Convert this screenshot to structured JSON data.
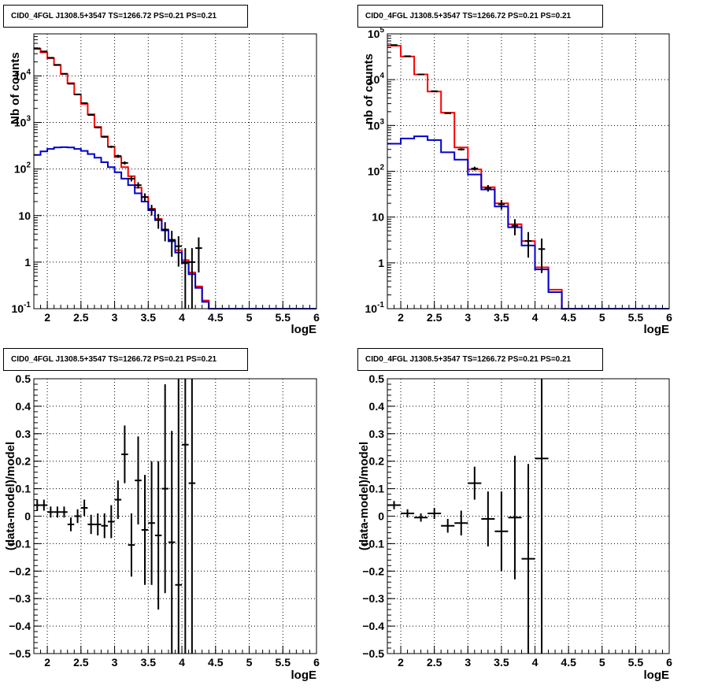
{
  "colors": {
    "data": "#000000",
    "model": "#ff0000",
    "component": "#0000cc",
    "grid": "#000000"
  },
  "chart_data": [
    {
      "type": "line",
      "title": "CID0_4FGL J1308.5+3547 TS=1266.72 PS=0.21 PS=0.21",
      "xlabel": "logE",
      "ylabel": "Nb of counts",
      "xlim": [
        1.8,
        6.0
      ],
      "ylim": [
        0.1,
        80000
      ],
      "log_y": true,
      "grid": true,
      "x_ticks": [
        "2",
        "2.5",
        "3",
        "3.5",
        "4",
        "4.5",
        "5",
        "5.5",
        "6"
      ],
      "y_ticks": [
        "10^-1",
        "1",
        "10",
        "10^2",
        "10^3",
        "10^4"
      ],
      "bin_edges": [
        1.8,
        1.9,
        2.0,
        2.1,
        2.2,
        2.3,
        2.4,
        2.5,
        2.6,
        2.7,
        2.8,
        2.9,
        3.0,
        3.1,
        3.2,
        3.3,
        3.4,
        3.5,
        3.6,
        3.7,
        3.8,
        3.9,
        4.0,
        4.1,
        4.2,
        4.3,
        4.4,
        4.5,
        4.6,
        4.7,
        4.8,
        4.9,
        5.0,
        5.1,
        5.2,
        5.3,
        5.4,
        5.5,
        5.6,
        5.7,
        5.8,
        5.9,
        6.0
      ],
      "series": [
        {
          "kind": "step",
          "color": "#ff0000",
          "values": [
            38000,
            32000,
            24000,
            17000,
            11000,
            7000,
            4000,
            2500,
            1500,
            800,
            500,
            300,
            180,
            110,
            70,
            40,
            25,
            14,
            8.5,
            5,
            3,
            1.8,
            1.1,
            0.6,
            0.3,
            0.15,
            0.1,
            0.1,
            0.1,
            0.1,
            0.1,
            0.1,
            0.1,
            0.1,
            0.1,
            0.1,
            0.1,
            0.1,
            0.1,
            0.1,
            0.1,
            0.1
          ]
        },
        {
          "kind": "step",
          "color": "#0000cc",
          "values": [
            200,
            240,
            270,
            290,
            295,
            290,
            270,
            245,
            210,
            175,
            140,
            110,
            85,
            62,
            45,
            30,
            20,
            13,
            8,
            4.8,
            2.8,
            1.6,
            0.95,
            0.55,
            0.28,
            0.14,
            0.1,
            0.1,
            0.1,
            0.1,
            0.1,
            0.1,
            0.1,
            0.1,
            0.1,
            0.1,
            0.1,
            0.1,
            0.1,
            0.1,
            0.1,
            0.1
          ]
        },
        {
          "kind": "points",
          "color": "#000000",
          "points": [
            {
              "x": 1.85,
              "y": 39000,
              "lo": 38500,
              "hi": 39500
            },
            {
              "x": 1.95,
              "y": 33500,
              "lo": 33000,
              "hi": 34000
            },
            {
              "x": 2.05,
              "y": 24500,
              "lo": 24100,
              "hi": 24900
            },
            {
              "x": 2.15,
              "y": 17300,
              "lo": 17000,
              "hi": 17600
            },
            {
              "x": 2.25,
              "y": 11100,
              "lo": 10900,
              "hi": 11300
            },
            {
              "x": 2.35,
              "y": 6800,
              "lo": 6650,
              "hi": 6950
            },
            {
              "x": 2.45,
              "y": 4000,
              "lo": 3900,
              "hi": 4100
            },
            {
              "x": 2.55,
              "y": 2600,
              "lo": 2500,
              "hi": 2700
            },
            {
              "x": 2.65,
              "y": 1450,
              "lo": 1400,
              "hi": 1500
            },
            {
              "x": 2.75,
              "y": 780,
              "lo": 750,
              "hi": 810
            },
            {
              "x": 2.85,
              "y": 490,
              "lo": 470,
              "hi": 510
            },
            {
              "x": 2.95,
              "y": 300,
              "lo": 283,
              "hi": 317
            },
            {
              "x": 3.05,
              "y": 190,
              "lo": 177,
              "hi": 203
            },
            {
              "x": 3.15,
              "y": 135,
              "lo": 124,
              "hi": 146
            },
            {
              "x": 3.25,
              "y": 62,
              "lo": 54,
              "hi": 70
            },
            {
              "x": 3.35,
              "y": 45,
              "lo": 38,
              "hi": 52
            },
            {
              "x": 3.45,
              "y": 25,
              "lo": 20,
              "hi": 30
            },
            {
              "x": 3.55,
              "y": 13.5,
              "lo": 10,
              "hi": 17
            },
            {
              "x": 3.65,
              "y": 8,
              "lo": 5.2,
              "hi": 10.8
            },
            {
              "x": 3.75,
              "y": 5,
              "lo": 2.8,
              "hi": 7.2
            },
            {
              "x": 3.85,
              "y": 3,
              "lo": 1.3,
              "hi": 4.7
            },
            {
              "x": 3.95,
              "y": 2.2,
              "lo": 0.8,
              "hi": 3.6
            },
            {
              "x": 4.05,
              "y": 1,
              "lo": 0.1,
              "hi": 2.0
            },
            {
              "x": 4.15,
              "y": 1,
              "lo": 0.1,
              "hi": 2.0
            },
            {
              "x": 4.25,
              "y": 2,
              "lo": 0.6,
              "hi": 3.4
            }
          ]
        }
      ]
    },
    {
      "type": "line",
      "title": "CID0_4FGL J1308.5+3547 TS=1266.72 PS=0.21 PS=0.21",
      "xlabel": "logE",
      "ylabel": "nb of counts",
      "xlim": [
        1.8,
        6.0
      ],
      "ylim": [
        0.1,
        100000
      ],
      "log_y": true,
      "grid": true,
      "x_ticks": [
        "2",
        "2.5",
        "3",
        "3.5",
        "4",
        "4.5",
        "5",
        "5.5",
        "6"
      ],
      "y_ticks": [
        "10^-1",
        "1",
        "10",
        "10^2",
        "10^3",
        "10^4",
        "10^5"
      ],
      "bin_edges": [
        1.8,
        2.0,
        2.2,
        2.4,
        2.6,
        2.8,
        3.0,
        3.2,
        3.4,
        3.6,
        3.8,
        4.0,
        4.2,
        4.4,
        4.6,
        4.8,
        5.0,
        5.2,
        5.4,
        5.6,
        5.8,
        6.0
      ],
      "series": [
        {
          "kind": "step",
          "color": "#ff0000",
          "values": [
            55000,
            32000,
            13000,
            5500,
            1900,
            330,
            110,
            45,
            20,
            7,
            3,
            0.8,
            0.26,
            0.1,
            0.1,
            0.1,
            0.1,
            0.1,
            0.1,
            0.1,
            0.1
          ]
        },
        {
          "kind": "step",
          "color": "#0000cc",
          "values": [
            400,
            520,
            580,
            480,
            260,
            180,
            85,
            40,
            17,
            6,
            2.4,
            0.72,
            0.23,
            0.1,
            0.1,
            0.1,
            0.1,
            0.1,
            0.1,
            0.1,
            0.1
          ]
        },
        {
          "kind": "points",
          "color": "#000000",
          "points": [
            {
              "x": 1.9,
              "y": 57000,
              "lo": 56500,
              "hi": 57500
            },
            {
              "x": 2.1,
              "y": 32500,
              "lo": 32100,
              "hi": 32900
            },
            {
              "x": 2.3,
              "y": 13000,
              "lo": 12800,
              "hi": 13200
            },
            {
              "x": 2.5,
              "y": 5600,
              "lo": 5500,
              "hi": 5700
            },
            {
              "x": 2.7,
              "y": 1850,
              "lo": 1800,
              "hi": 1900
            },
            {
              "x": 2.9,
              "y": 300,
              "lo": 283,
              "hi": 317
            },
            {
              "x": 3.1,
              "y": 115,
              "lo": 104,
              "hi": 126
            },
            {
              "x": 3.3,
              "y": 43,
              "lo": 36,
              "hi": 50
            },
            {
              "x": 3.5,
              "y": 19,
              "lo": 14.5,
              "hi": 23.5
            },
            {
              "x": 3.7,
              "y": 6.5,
              "lo": 4,
              "hi": 9
            },
            {
              "x": 3.9,
              "y": 3,
              "lo": 1.3,
              "hi": 4.7
            },
            {
              "x": 4.1,
              "y": 2,
              "lo": 0.6,
              "hi": 3.4
            }
          ]
        }
      ]
    },
    {
      "type": "scatter",
      "title": "CID0_4FGL J1308.5+3547 TS=1266.72 PS=0.21 PS=0.21",
      "xlabel": "logE",
      "ylabel": "(data-model)/model",
      "xlim": [
        1.8,
        6.0
      ],
      "ylim": [
        -0.5,
        0.5
      ],
      "grid": true,
      "x_ticks": [
        "2",
        "2.5",
        "3",
        "3.5",
        "4",
        "4.5",
        "5",
        "5.5",
        "6"
      ],
      "y_ticks": [
        "−0.5",
        "−0.4",
        "−0.3",
        "−0.2",
        "−0.1",
        "0",
        "0.1",
        "0.2",
        "0.3",
        "0.4",
        "0.5"
      ],
      "series": [
        {
          "kind": "points",
          "color": "#000000",
          "xerr": 0.05,
          "points": [
            {
              "x": 1.85,
              "y": 0.04,
              "lo": 0.02,
              "hi": 0.06
            },
            {
              "x": 1.95,
              "y": 0.04,
              "lo": 0.02,
              "hi": 0.06
            },
            {
              "x": 2.05,
              "y": 0.015,
              "lo": -0.005,
              "hi": 0.035
            },
            {
              "x": 2.15,
              "y": 0.015,
              "lo": -0.005,
              "hi": 0.035
            },
            {
              "x": 2.25,
              "y": 0.015,
              "lo": -0.005,
              "hi": 0.035
            },
            {
              "x": 2.35,
              "y": -0.03,
              "lo": -0.055,
              "hi": -0.005
            },
            {
              "x": 2.45,
              "y": 0.0,
              "lo": -0.025,
              "hi": 0.025
            },
            {
              "x": 2.55,
              "y": 0.03,
              "lo": 0.0,
              "hi": 0.06
            },
            {
              "x": 2.65,
              "y": -0.03,
              "lo": -0.065,
              "hi": 0.005
            },
            {
              "x": 2.75,
              "y": -0.03,
              "lo": -0.07,
              "hi": 0.01
            },
            {
              "x": 2.85,
              "y": -0.035,
              "lo": -0.08,
              "hi": 0.01
            },
            {
              "x": 2.95,
              "y": -0.02,
              "lo": -0.08,
              "hi": 0.04
            },
            {
              "x": 3.05,
              "y": 0.06,
              "lo": -0.01,
              "hi": 0.13
            },
            {
              "x": 3.15,
              "y": 0.225,
              "lo": 0.12,
              "hi": 0.33
            },
            {
              "x": 3.25,
              "y": -0.105,
              "lo": -0.22,
              "hi": 0.01
            },
            {
              "x": 3.35,
              "y": 0.13,
              "lo": -0.03,
              "hi": 0.29
            },
            {
              "x": 3.45,
              "y": -0.05,
              "lo": -0.25,
              "hi": 0.15
            },
            {
              "x": 3.55,
              "y": -0.025,
              "lo": -0.25,
              "hi": 0.2
            },
            {
              "x": 3.65,
              "y": -0.07,
              "lo": -0.34,
              "hi": 0.2
            },
            {
              "x": 3.75,
              "y": 0.1,
              "lo": -0.28,
              "hi": 0.48
            },
            {
              "x": 3.85,
              "y": -0.095,
              "lo": -0.5,
              "hi": 0.31
            },
            {
              "x": 3.95,
              "y": -0.25,
              "lo": -0.5,
              "hi": 0.5
            },
            {
              "x": 4.05,
              "y": 0.26,
              "lo": -0.5,
              "hi": 0.5
            },
            {
              "x": 4.15,
              "y": 0.12,
              "lo": -0.5,
              "hi": 0.5
            }
          ]
        }
      ]
    },
    {
      "type": "scatter",
      "title": "CID0_4FGL J1308.5+3547 TS=1266.72 PS=0.21 PS=0.21",
      "xlabel": "logE",
      "ylabel": "(data-model)/model",
      "xlim": [
        1.8,
        6.0
      ],
      "ylim": [
        -0.5,
        0.5
      ],
      "grid": true,
      "x_ticks": [
        "2",
        "2.5",
        "3",
        "3.5",
        "4",
        "4.5",
        "5",
        "5.5",
        "6"
      ],
      "y_ticks": [
        "−0.5",
        "−0.4",
        "−0.3",
        "−0.2",
        "−0.1",
        "0",
        "0.1",
        "0.2",
        "0.3",
        "0.4",
        "0.5"
      ],
      "series": [
        {
          "kind": "points",
          "color": "#000000",
          "xerr": 0.1,
          "points": [
            {
              "x": 1.9,
              "y": 0.04,
              "lo": 0.025,
              "hi": 0.055
            },
            {
              "x": 2.1,
              "y": 0.01,
              "lo": -0.005,
              "hi": 0.025
            },
            {
              "x": 2.3,
              "y": -0.005,
              "lo": -0.02,
              "hi": 0.01
            },
            {
              "x": 2.5,
              "y": 0.01,
              "lo": -0.01,
              "hi": 0.03
            },
            {
              "x": 2.7,
              "y": -0.035,
              "lo": -0.06,
              "hi": -0.01
            },
            {
              "x": 2.9,
              "y": -0.025,
              "lo": -0.07,
              "hi": 0.02
            },
            {
              "x": 3.1,
              "y": 0.12,
              "lo": 0.06,
              "hi": 0.18
            },
            {
              "x": 3.3,
              "y": -0.01,
              "lo": -0.11,
              "hi": 0.09
            },
            {
              "x": 3.5,
              "y": -0.055,
              "lo": -0.2,
              "hi": 0.09
            },
            {
              "x": 3.7,
              "y": -0.005,
              "lo": -0.23,
              "hi": 0.22
            },
            {
              "x": 3.9,
              "y": -0.155,
              "lo": -0.5,
              "hi": 0.19
            },
            {
              "x": 4.1,
              "y": 0.21,
              "lo": -0.5,
              "hi": 0.5
            }
          ]
        }
      ]
    }
  ]
}
